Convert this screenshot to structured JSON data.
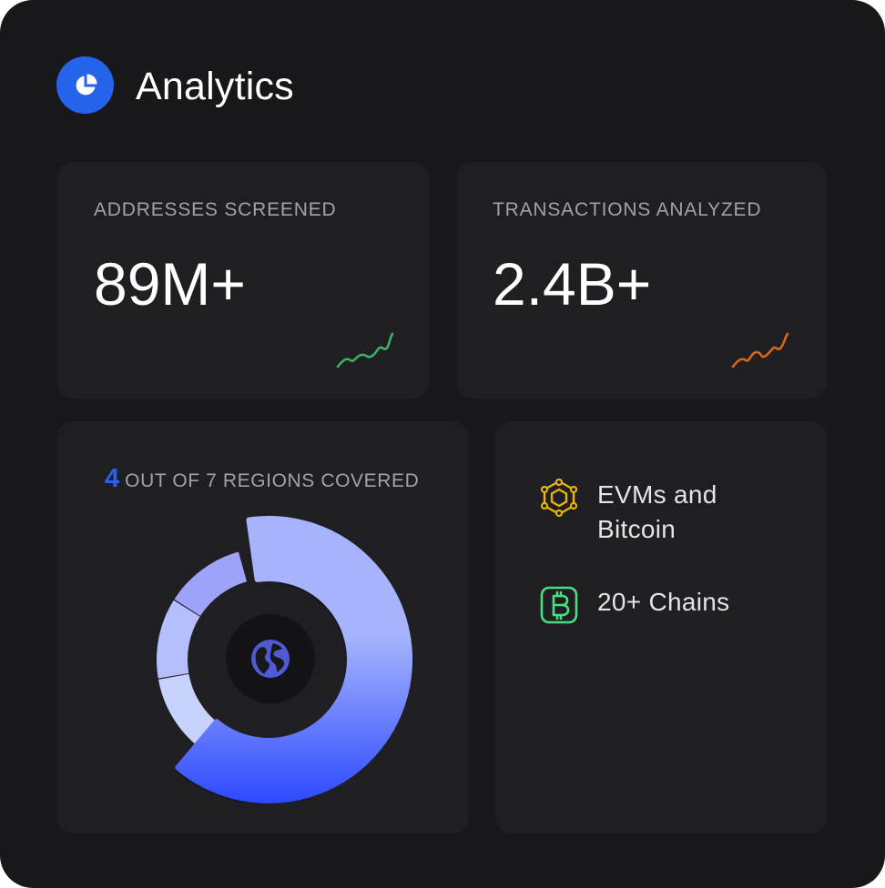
{
  "header": {
    "title": "Analytics",
    "icon": "pie-chart-icon",
    "icon_bg": "#2563eb"
  },
  "stats": [
    {
      "label": "ADDRESSES SCREENED",
      "value": "89M+",
      "trend_icon": "trend-up-icon",
      "trend_color": "#4ade80"
    },
    {
      "label": "TRANSACTIONS ANALYZED",
      "value": "2.4B+",
      "trend_icon": "trend-up-icon",
      "trend_color": "#f97316"
    }
  ],
  "regions": {
    "count": "4",
    "text": "OUT OF 7 REGIONS COVERED",
    "covered": 4,
    "total": 7,
    "center_icon": "globe-icon",
    "accent": "#2563eb"
  },
  "chains": [
    {
      "label": "EVMs and Bitcoin",
      "icon": "hexagon-network-icon",
      "color": "#eab308"
    },
    {
      "label": "20+ Chains",
      "icon": "bitcoin-icon",
      "color": "#4ade80"
    }
  ]
}
